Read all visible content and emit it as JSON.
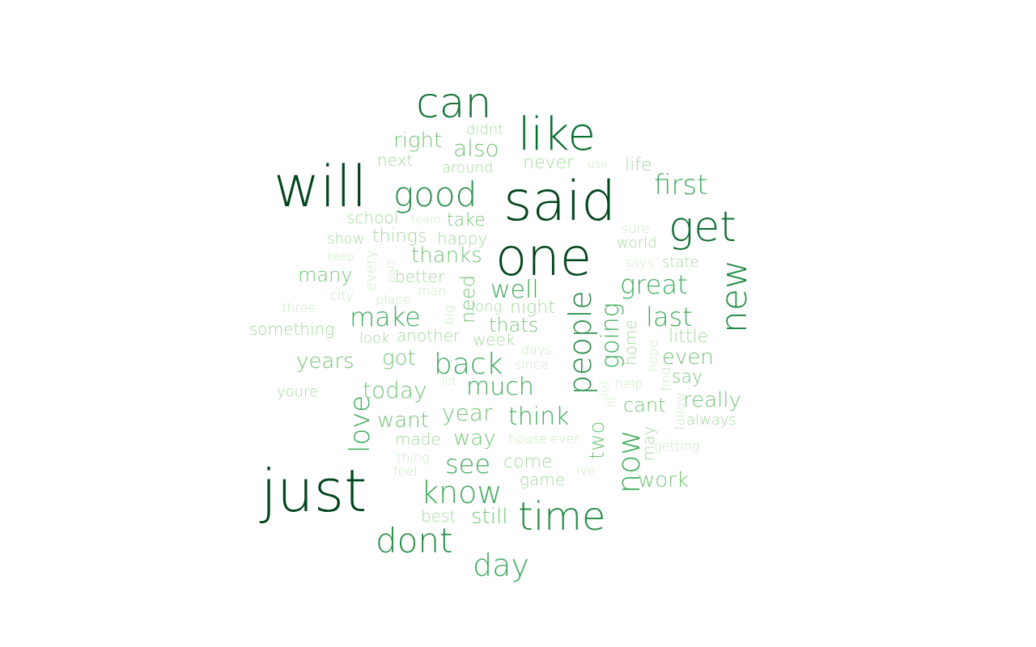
{
  "palette": {
    "darkest": "#00441b",
    "dark": "#0b6e2f",
    "mid": "#238b45",
    "medium": "#41ab5d",
    "light": "#74c476",
    "lighter": "#a1d99b",
    "lightest": "#c7e9c0"
  },
  "words": [
    {
      "text": "will",
      "weight": 1.0,
      "vertical": false
    },
    {
      "text": "said",
      "weight": 0.98,
      "vertical": false
    },
    {
      "text": "just",
      "weight": 0.98,
      "vertical": false
    },
    {
      "text": "one",
      "weight": 0.96,
      "vertical": false
    },
    {
      "text": "like",
      "weight": 0.8,
      "vertical": false
    },
    {
      "text": "can",
      "weight": 0.8,
      "vertical": false
    },
    {
      "text": "get",
      "weight": 0.8,
      "vertical": false
    },
    {
      "text": "time",
      "weight": 0.72,
      "vertical": false
    },
    {
      "text": "new",
      "weight": 0.66,
      "vertical": true
    },
    {
      "text": "good",
      "weight": 0.62,
      "vertical": false
    },
    {
      "text": "dont",
      "weight": 0.6,
      "vertical": false
    },
    {
      "text": "people",
      "weight": 0.58,
      "vertical": true
    },
    {
      "text": "now",
      "weight": 0.56,
      "vertical": true
    },
    {
      "text": "know",
      "weight": 0.54,
      "vertical": false
    },
    {
      "text": "day",
      "weight": 0.52,
      "vertical": false
    },
    {
      "text": "back",
      "weight": 0.5,
      "vertical": false
    },
    {
      "text": "love",
      "weight": 0.48,
      "vertical": true
    },
    {
      "text": "first",
      "weight": 0.48,
      "vertical": false
    },
    {
      "text": "make",
      "weight": 0.46,
      "vertical": false
    },
    {
      "text": "last",
      "weight": 0.46,
      "vertical": false
    },
    {
      "text": "great",
      "weight": 0.44,
      "vertical": false
    },
    {
      "text": "going",
      "weight": 0.44,
      "vertical": true
    },
    {
      "text": "see",
      "weight": 0.44,
      "vertical": false
    },
    {
      "text": "much",
      "weight": 0.42,
      "vertical": false
    },
    {
      "text": "well",
      "weight": 0.4,
      "vertical": false
    },
    {
      "text": "think",
      "weight": 0.4,
      "vertical": false
    },
    {
      "text": "today",
      "weight": 0.38,
      "vertical": false
    },
    {
      "text": "also",
      "weight": 0.38,
      "vertical": false
    },
    {
      "text": "years",
      "weight": 0.36,
      "vertical": false
    },
    {
      "text": "year",
      "weight": 0.36,
      "vertical": false
    },
    {
      "text": "even",
      "weight": 0.36,
      "vertical": false
    },
    {
      "text": "really",
      "weight": 0.36,
      "vertical": false
    },
    {
      "text": "got",
      "weight": 0.36,
      "vertical": false
    },
    {
      "text": "two",
      "weight": 0.34,
      "vertical": true
    },
    {
      "text": "right",
      "weight": 0.34,
      "vertical": false
    },
    {
      "text": "want",
      "weight": 0.34,
      "vertical": false
    },
    {
      "text": "way",
      "weight": 0.32,
      "vertical": false
    },
    {
      "text": "still",
      "weight": 0.32,
      "vertical": false
    },
    {
      "text": "thanks",
      "weight": 0.32,
      "vertical": false
    },
    {
      "text": "need",
      "weight": 0.32,
      "vertical": true
    },
    {
      "text": "many",
      "weight": 0.3,
      "vertical": false
    },
    {
      "text": "thats",
      "weight": 0.3,
      "vertical": false
    },
    {
      "text": "cant",
      "weight": 0.3,
      "vertical": false
    },
    {
      "text": "work",
      "weight": 0.3,
      "vertical": false
    },
    {
      "text": "say",
      "weight": 0.28,
      "vertical": false
    },
    {
      "text": "take",
      "weight": 0.28,
      "vertical": false
    },
    {
      "text": "never",
      "weight": 0.26,
      "vertical": false
    },
    {
      "text": "things",
      "weight": 0.26,
      "vertical": false
    },
    {
      "text": "life",
      "weight": 0.26,
      "vertical": false
    },
    {
      "text": "night",
      "weight": 0.26,
      "vertical": false
    },
    {
      "text": "little",
      "weight": 0.26,
      "vertical": false
    },
    {
      "text": "come",
      "weight": 0.26,
      "vertical": false
    },
    {
      "text": "better",
      "weight": 0.24,
      "vertical": false
    },
    {
      "text": "home",
      "weight": 0.24,
      "vertical": true
    },
    {
      "text": "week",
      "weight": 0.24,
      "vertical": false
    },
    {
      "text": "next",
      "weight": 0.24,
      "vertical": false
    },
    {
      "text": "happy",
      "weight": 0.24,
      "vertical": false
    },
    {
      "text": "school",
      "weight": 0.24,
      "vertical": false
    },
    {
      "text": "made",
      "weight": 0.22,
      "vertical": false
    },
    {
      "text": "another",
      "weight": 0.22,
      "vertical": false
    },
    {
      "text": "world",
      "weight": 0.22,
      "vertical": false
    },
    {
      "text": "state",
      "weight": 0.22,
      "vertical": false
    },
    {
      "text": "game",
      "weight": 0.22,
      "vertical": false
    },
    {
      "text": "around",
      "weight": 0.22,
      "vertical": false
    },
    {
      "text": "didnt",
      "weight": 0.22,
      "vertical": false
    },
    {
      "text": "something",
      "weight": 0.22,
      "vertical": false
    },
    {
      "text": "show",
      "weight": 0.22,
      "vertical": false
    },
    {
      "text": "best",
      "weight": 0.22,
      "vertical": false
    },
    {
      "text": "look",
      "weight": 0.2,
      "vertical": false
    },
    {
      "text": "long",
      "weight": 0.2,
      "vertical": false
    },
    {
      "text": "always",
      "weight": 0.2,
      "vertical": false
    },
    {
      "text": "youre",
      "weight": 0.2,
      "vertical": false
    },
    {
      "text": "may",
      "weight": 0.2,
      "vertical": true
    },
    {
      "text": "three",
      "weight": 0.18,
      "vertical": false
    },
    {
      "text": "city",
      "weight": 0.18,
      "vertical": false
    },
    {
      "text": "every",
      "weight": 0.18,
      "vertical": true
    },
    {
      "text": "man",
      "weight": 0.18,
      "vertical": false
    },
    {
      "text": "days",
      "weight": 0.18,
      "vertical": false
    },
    {
      "text": "since",
      "weight": 0.18,
      "vertical": false
    },
    {
      "text": "sure",
      "weight": 0.18,
      "vertical": false
    },
    {
      "text": "says",
      "weight": 0.18,
      "vertical": false
    },
    {
      "text": "getting",
      "weight": 0.18,
      "vertical": false
    },
    {
      "text": "thing",
      "weight": 0.18,
      "vertical": false
    },
    {
      "text": "feel",
      "weight": 0.18,
      "vertical": false
    },
    {
      "text": "place",
      "weight": 0.18,
      "vertical": false
    },
    {
      "text": "big",
      "weight": 0.16,
      "vertical": true
    },
    {
      "text": "part",
      "weight": 0.16,
      "vertical": true
    },
    {
      "text": "keep",
      "weight": 0.16,
      "vertical": false
    },
    {
      "text": "use",
      "weight": 0.16,
      "vertical": false
    },
    {
      "text": "team",
      "weight": 0.16,
      "vertical": false
    },
    {
      "text": "lot",
      "weight": 0.16,
      "vertical": false
    },
    {
      "text": "house",
      "weight": 0.16,
      "vertical": false
    },
    {
      "text": "ever",
      "weight": 0.16,
      "vertical": false
    },
    {
      "text": "ive",
      "weight": 0.16,
      "vertical": false
    },
    {
      "text": "help",
      "weight": 0.16,
      "vertical": false
    },
    {
      "text": "hope",
      "weight": 0.14,
      "vertical": true
    },
    {
      "text": "find",
      "weight": 0.14,
      "vertical": true
    },
    {
      "text": "follow",
      "weight": 0.14,
      "vertical": true
    },
    {
      "text": "lol",
      "weight": 0.14,
      "vertical": true
    },
    {
      "text": "ill",
      "weight": 0.14,
      "vertical": true
    }
  ]
}
